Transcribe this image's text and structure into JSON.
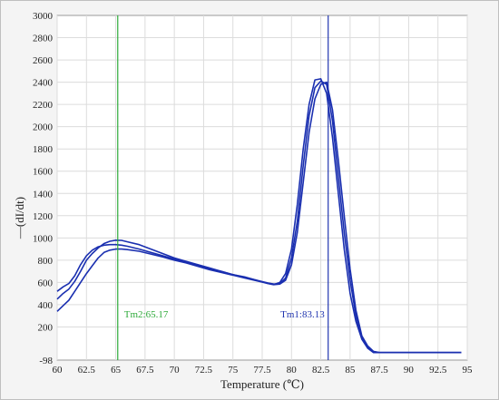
{
  "chart_data": {
    "type": "line",
    "title": "",
    "xlabel": "Temperature (℃)",
    "ylabel": "—(dI/dt)",
    "xlim": [
      60,
      95
    ],
    "ylim": [
      -98,
      3000
    ],
    "xticks": [
      "60",
      "62.5",
      "65",
      "67.5",
      "70",
      "72.5",
      "75",
      "77.5",
      "80",
      "82.5",
      "85",
      "87.5",
      "90",
      "92.5",
      "95"
    ],
    "yticks": [
      "-98",
      "200",
      "400",
      "600",
      "800",
      "1000",
      "1200",
      "1400",
      "1600",
      "1800",
      "2000",
      "2200",
      "2400",
      "2600",
      "2800",
      "3000"
    ],
    "ytick_values": [
      -98,
      200,
      400,
      600,
      800,
      1000,
      1200,
      1400,
      1600,
      1800,
      2000,
      2200,
      2400,
      2600,
      2800,
      3000
    ],
    "grid": true,
    "line_color": "#1a2fb0",
    "series": [
      {
        "x": [
          60,
          60.5,
          61,
          61.5,
          62,
          62.5,
          63,
          63.5,
          64,
          64.5,
          65,
          65.5,
          66,
          67,
          68,
          69,
          70,
          71,
          72,
          73,
          74,
          75,
          76,
          77,
          78,
          78.5,
          79,
          79.5,
          80,
          80.5,
          81,
          81.5,
          82,
          82.5,
          83,
          83.5,
          84,
          84.5,
          85,
          85.5,
          86,
          86.5,
          87,
          87.5,
          88,
          89,
          90,
          91,
          92,
          93,
          94,
          94.5
        ],
        "y": [
          450,
          500,
          540,
          610,
          700,
          800,
          860,
          910,
          950,
          970,
          980,
          978,
          965,
          940,
          900,
          860,
          820,
          790,
          760,
          730,
          700,
          670,
          650,
          620,
          590,
          580,
          600,
          680,
          900,
          1300,
          1800,
          2200,
          2420,
          2430,
          2300,
          1900,
          1400,
          900,
          500,
          250,
          90,
          10,
          -30,
          -30,
          -30,
          -30,
          -30,
          -30,
          -30,
          -30,
          -30,
          -30
        ]
      },
      {
        "x": [
          60,
          60.5,
          61,
          61.5,
          62,
          62.5,
          63,
          63.5,
          64,
          64.5,
          65,
          65.5,
          66,
          67,
          68,
          69,
          70,
          71,
          72,
          73,
          74,
          75,
          76,
          77,
          78,
          78.5,
          79,
          79.5,
          80,
          80.5,
          81,
          81.5,
          82,
          82.5,
          83,
          83.5,
          84,
          84.5,
          85,
          85.5,
          86,
          86.5,
          87,
          87.5,
          88,
          89,
          90,
          91,
          92,
          93,
          94,
          94.5
        ],
        "y": [
          520,
          560,
          590,
          660,
          760,
          840,
          890,
          920,
          935,
          940,
          940,
          935,
          925,
          900,
          870,
          840,
          810,
          785,
          755,
          725,
          700,
          670,
          645,
          620,
          595,
          585,
          590,
          640,
          820,
          1150,
          1650,
          2100,
          2350,
          2410,
          2380,
          2050,
          1550,
          1050,
          620,
          300,
          100,
          20,
          -25,
          -30,
          -30,
          -30,
          -30,
          -30,
          -30,
          -30,
          -30,
          -30
        ]
      },
      {
        "x": [
          60,
          60.5,
          61,
          61.5,
          62,
          62.5,
          63,
          63.5,
          64,
          64.5,
          65,
          65.5,
          66,
          67,
          68,
          69,
          70,
          71,
          72,
          73,
          74,
          75,
          76,
          77,
          78,
          78.5,
          79,
          79.5,
          80,
          80.5,
          81,
          81.5,
          82,
          82.5,
          83,
          83.5,
          84,
          84.5,
          85,
          85.5,
          86,
          86.5,
          87,
          87.5,
          88,
          89,
          90,
          91,
          92,
          93,
          94,
          94.5
        ],
        "y": [
          340,
          390,
          440,
          520,
          600,
          680,
          750,
          820,
          870,
          890,
          900,
          900,
          895,
          880,
          855,
          830,
          800,
          775,
          745,
          715,
          690,
          665,
          640,
          615,
          590,
          580,
          585,
          620,
          760,
          1050,
          1500,
          1950,
          2250,
          2380,
          2400,
          2150,
          1700,
          1200,
          720,
          350,
          120,
          30,
          -20,
          -30,
          -30,
          -30,
          -30,
          -30,
          -30,
          -30,
          -30,
          -30
        ]
      }
    ],
    "markers": [
      {
        "label": "Tm2:65.17",
        "x": 65.17,
        "color": "#2eaa3a"
      },
      {
        "label": "Tm1:83.13",
        "x": 83.13,
        "color": "#2236b0"
      }
    ]
  }
}
